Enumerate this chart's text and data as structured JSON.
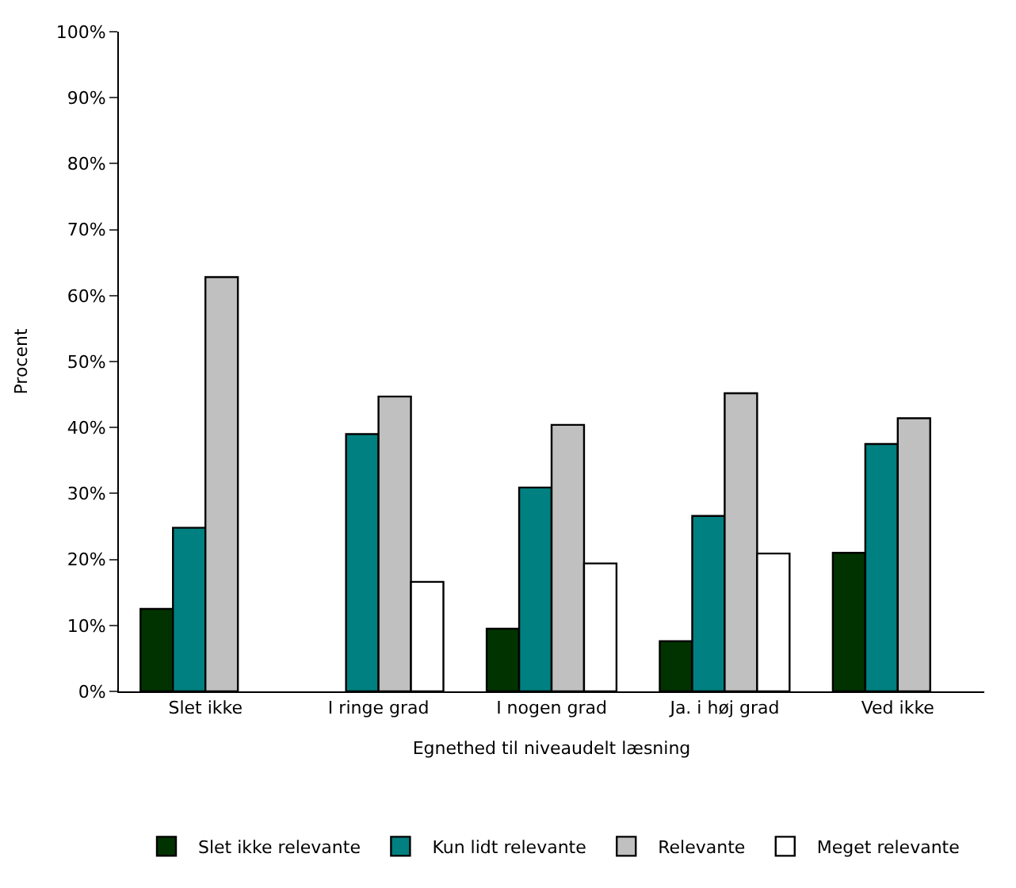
{
  "chart_data": {
    "type": "bar",
    "xlabel": "Egnethed til niveaudelt læsning",
    "ylabel": "Procent",
    "categories": [
      "Slet ikke",
      "I ringe grad",
      "I nogen grad",
      "Ja. i høj grad",
      "Ved ikke"
    ],
    "series": [
      {
        "name": "Slet ikke relevante",
        "color": "#003300",
        "values": [
          12.5,
          null,
          9.5,
          7.6,
          21
        ]
      },
      {
        "name": "Kun lidt relevante",
        "color": "#008080",
        "values": [
          24.8,
          39,
          30.9,
          26.6,
          37.5
        ]
      },
      {
        "name": "Relevante",
        "color": "#c0c0c0",
        "values": [
          62.8,
          44.7,
          40.4,
          45.2,
          41.4
        ]
      },
      {
        "name": "Meget relevante",
        "color": "#ffffff",
        "values": [
          null,
          16.6,
          19.4,
          20.9,
          null
        ]
      }
    ],
    "ylim": [
      0,
      100
    ],
    "yticks": [
      {
        "value": 0,
        "label": "0%"
      },
      {
        "value": 10,
        "label": "10%"
      },
      {
        "value": 20,
        "label": "20%"
      },
      {
        "value": 30,
        "label": "30%"
      },
      {
        "value": 40,
        "label": "40%"
      },
      {
        "value": 50,
        "label": "50%"
      },
      {
        "value": 60,
        "label": "60%"
      },
      {
        "value": 70,
        "label": "70%"
      },
      {
        "value": 80,
        "label": "80%"
      },
      {
        "value": 90,
        "label": "90%"
      },
      {
        "value": 100,
        "label": "100%"
      }
    ],
    "grid": false,
    "legend": "bottom"
  }
}
